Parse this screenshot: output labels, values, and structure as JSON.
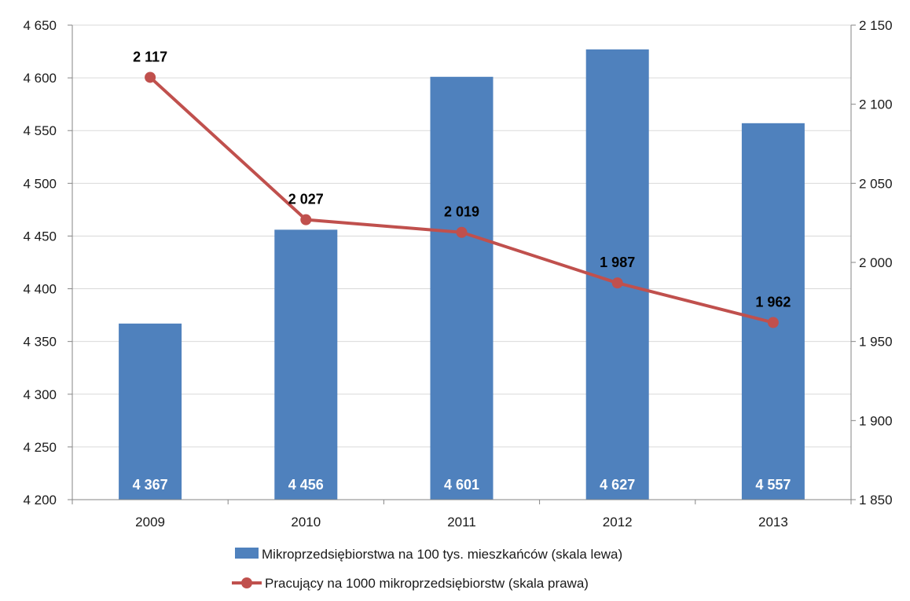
{
  "chart_data": {
    "type": "bar",
    "categories": [
      "2009",
      "2010",
      "2011",
      "2012",
      "2013"
    ],
    "series": [
      {
        "name": "Mikroprzedsiębiorstwa na 100 tys. mieszkańców (skala lewa)",
        "type": "bar",
        "axis": "left",
        "values": [
          4367,
          4456,
          4601,
          4627,
          4557
        ],
        "labels": [
          "4 367",
          "4 456",
          "4 601",
          "4 627",
          "4 557"
        ],
        "color": "#4F81BD"
      },
      {
        "name": "Pracujący na 1000 mikroprzedsiębiorstw (skala prawa)",
        "type": "line",
        "axis": "right",
        "values": [
          2117,
          2027,
          2019,
          1987,
          1962
        ],
        "labels": [
          "2 117",
          "2 027",
          "2 019",
          "1 987",
          "1 962"
        ],
        "color": "#C0504D"
      }
    ],
    "y_left": {
      "ylim": [
        4200,
        4650
      ],
      "ticks": [
        4200,
        4250,
        4300,
        4350,
        4400,
        4450,
        4500,
        4550,
        4600,
        4650
      ],
      "tick_labels": [
        "4 200",
        "4 250",
        "4 300",
        "4 350",
        "4 400",
        "4 450",
        "4 500",
        "4 550",
        "4 600",
        "4 650"
      ]
    },
    "y_right": {
      "ylim": [
        1850,
        2150
      ],
      "ticks": [
        1850,
        1900,
        1950,
        2000,
        2050,
        2100,
        2150
      ],
      "tick_labels": [
        "1 850",
        "1 900",
        "1 950",
        "2 000",
        "2 050",
        "2 100",
        "2 150"
      ]
    },
    "grid": true,
    "legend_position": "bottom",
    "gridline_color": "#D9D9D9",
    "axis_color": "#868686"
  }
}
